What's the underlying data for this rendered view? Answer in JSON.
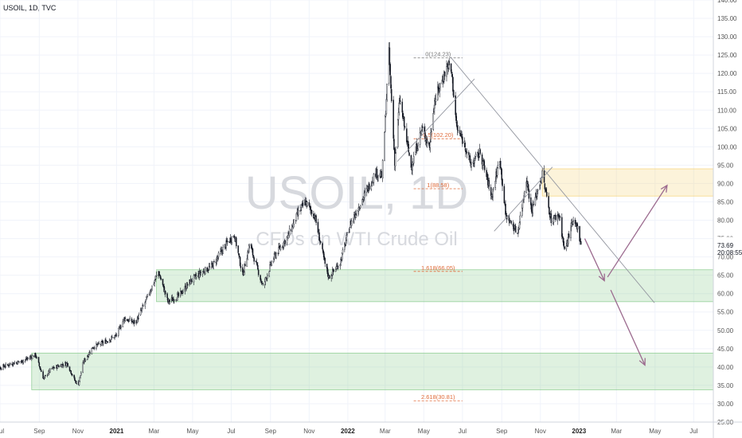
{
  "symbol_label": "USOIL, 1D, TVC",
  "watermark": {
    "symbol": "USOIL, 1D",
    "description": "CFDs on WTI Crude Oil"
  },
  "last_price": {
    "value": "73.69",
    "countdown": "20:08:55"
  },
  "chart_data": {
    "type": "candlestick",
    "title": "",
    "xlabel": "",
    "ylabel": "",
    "ylim": [
      25,
      140
    ],
    "xlim": [
      "2020-07-01",
      "2023-08-01"
    ],
    "y_ticks": [
      25,
      30,
      35,
      40,
      45,
      50,
      55,
      60,
      65,
      70,
      75,
      80,
      85,
      90,
      95,
      100,
      105,
      110,
      115,
      120,
      125,
      130,
      135,
      140
    ],
    "y_tick_labels": [
      "25.00",
      "30.00",
      "35.00",
      "40.00",
      "45.00",
      "50.00",
      "55.00",
      "60.00",
      "65.00",
      "70.00",
      "75.00",
      "80.00",
      "85.00",
      "90.00",
      "95.00",
      "100.00",
      "105.00",
      "110.00",
      "115.00",
      "120.00",
      "125.00",
      "130.00",
      "135.00",
      "140.00"
    ],
    "x_ticks": [
      {
        "date": "2020-07-01",
        "label": "Jul"
      },
      {
        "date": "2020-09-01",
        "label": "Sep"
      },
      {
        "date": "2020-11-01",
        "label": "Nov"
      },
      {
        "date": "2021-01-01",
        "label": "2021",
        "bold": true
      },
      {
        "date": "2021-03-01",
        "label": "Mar"
      },
      {
        "date": "2021-05-01",
        "label": "May"
      },
      {
        "date": "2021-07-01",
        "label": "Jul"
      },
      {
        "date": "2021-09-01",
        "label": "Sep"
      },
      {
        "date": "2021-11-01",
        "label": "Nov"
      },
      {
        "date": "2022-01-01",
        "label": "2022",
        "bold": true
      },
      {
        "date": "2022-03-01",
        "label": "Mar"
      },
      {
        "date": "2022-05-01",
        "label": "May"
      },
      {
        "date": "2022-07-01",
        "label": "Jul"
      },
      {
        "date": "2022-09-01",
        "label": "Sep"
      },
      {
        "date": "2022-11-01",
        "label": "Nov"
      },
      {
        "date": "2023-01-01",
        "label": "2023",
        "bold": true
      },
      {
        "date": "2023-03-01",
        "label": "Mar"
      },
      {
        "date": "2023-05-01",
        "label": "May"
      },
      {
        "date": "2023-07-01",
        "label": "Jul"
      }
    ],
    "price_path": [
      [
        "2020-06-15",
        38.5
      ],
      [
        "2020-07-01",
        39.8
      ],
      [
        "2020-07-20",
        41.0
      ],
      [
        "2020-08-05",
        41.6
      ],
      [
        "2020-08-26",
        43.3
      ],
      [
        "2020-09-08",
        36.8
      ],
      [
        "2020-09-20",
        39.5
      ],
      [
        "2020-10-05",
        40.5
      ],
      [
        "2020-10-15",
        41.0
      ],
      [
        "2020-10-28",
        36.0
      ],
      [
        "2020-11-02",
        35.5
      ],
      [
        "2020-11-10",
        41.5
      ],
      [
        "2020-11-25",
        45.5
      ],
      [
        "2020-12-10",
        46.5
      ],
      [
        "2020-12-31",
        48.5
      ],
      [
        "2021-01-13",
        53.2
      ],
      [
        "2021-01-31",
        52.0
      ],
      [
        "2021-02-20",
        59.5
      ],
      [
        "2021-03-08",
        66.0
      ],
      [
        "2021-03-23",
        57.8
      ],
      [
        "2021-04-10",
        59.5
      ],
      [
        "2021-04-28",
        63.5
      ],
      [
        "2021-05-17",
        66.0
      ],
      [
        "2021-06-01",
        67.5
      ],
      [
        "2021-06-25",
        74.0
      ],
      [
        "2021-07-06",
        76.0
      ],
      [
        "2021-07-19",
        65.0
      ],
      [
        "2021-07-30",
        73.5
      ],
      [
        "2021-08-20",
        62.0
      ],
      [
        "2021-09-05",
        69.5
      ],
      [
        "2021-09-28",
        75.5
      ],
      [
        "2021-10-15",
        82.0
      ],
      [
        "2021-10-26",
        85.0
      ],
      [
        "2021-11-10",
        81.0
      ],
      [
        "2021-11-26",
        68.0
      ],
      [
        "2021-12-02",
        64.5
      ],
      [
        "2021-12-20",
        68.5
      ],
      [
        "2022-01-05",
        79.0
      ],
      [
        "2022-01-25",
        86.0
      ],
      [
        "2022-02-14",
        93.0
      ],
      [
        "2022-02-24",
        92.0
      ],
      [
        "2022-03-07",
        125.5
      ],
      [
        "2022-03-16",
        96.0
      ],
      [
        "2022-03-24",
        113.0
      ],
      [
        "2022-04-11",
        94.5
      ],
      [
        "2022-04-28",
        105.0
      ],
      [
        "2022-05-10",
        100.0
      ],
      [
        "2022-05-17",
        112.0
      ],
      [
        "2022-06-08",
        122.5
      ],
      [
        "2022-06-14",
        120.0
      ],
      [
        "2022-06-22",
        105.0
      ],
      [
        "2022-07-05",
        100.5
      ],
      [
        "2022-07-14",
        95.0
      ],
      [
        "2022-07-29",
        98.5
      ],
      [
        "2022-08-16",
        86.5
      ],
      [
        "2022-08-29",
        97.0
      ],
      [
        "2022-09-07",
        81.5
      ],
      [
        "2022-09-26",
        76.5
      ],
      [
        "2022-10-10",
        91.5
      ],
      [
        "2022-10-18",
        82.5
      ],
      [
        "2022-11-04",
        92.5
      ],
      [
        "2022-11-18",
        80.0
      ],
      [
        "2022-12-01",
        81.5
      ],
      [
        "2022-12-09",
        71.5
      ],
      [
        "2022-12-21",
        79.0
      ],
      [
        "2022-12-29",
        78.5
      ],
      [
        "2023-01-04",
        73.7
      ]
    ],
    "zones": [
      {
        "y0": 86.58,
        "y1": 94.0,
        "x0": "2022-11-04",
        "x1": "2023-08-01",
        "color": "#f5ce6a"
      },
      {
        "y0": 57.8,
        "y1": 66.5,
        "x0": "2021-03-05",
        "x1": "2023-08-01",
        "color": "#81c784"
      },
      {
        "y0": 33.8,
        "y1": 43.8,
        "x0": "2020-08-20",
        "x1": "2023-08-01",
        "color": "#81c784"
      }
    ],
    "fib_levels": [
      {
        "label": "0(124.23)",
        "value": 124.23
      },
      {
        "label": "0.5(102.20)",
        "value": 102.2
      },
      {
        "label": "1(88.58)",
        "value": 88.58
      },
      {
        "label": "1.618(66.05)",
        "value": 66.05
      },
      {
        "label": "2.618(30.81)",
        "value": 30.81
      }
    ],
    "trendlines": [
      {
        "x0": "2022-06-12",
        "y0": 124.5,
        "x1": "2023-04-30",
        "y1": 57.5,
        "color": "#9598a1"
      },
      {
        "x0": "2022-03-20",
        "y0": 96.0,
        "x1": "2022-07-20",
        "y1": 118.5,
        "color": "#9598a1"
      },
      {
        "x0": "2022-08-20",
        "y0": 77.0,
        "x1": "2022-11-20",
        "y1": 94.5,
        "color": "#9598a1"
      }
    ],
    "arrows": [
      {
        "x0": "2023-01-10",
        "y0": 75.0,
        "x1": "2023-02-10",
        "y1": 63.5
      },
      {
        "x0": "2023-02-15",
        "y0": 64.5,
        "x1": "2023-05-20",
        "y1": 89.5
      },
      {
        "x0": "2023-02-20",
        "y0": 61.0,
        "x1": "2023-04-15",
        "y1": 40.5
      }
    ],
    "grid": true,
    "legend": "none"
  },
  "colors": {
    "candles": "#131722",
    "fib": "#e06b3a",
    "arrow": "#9c6b8f",
    "grid": "#f0f3fa"
  }
}
